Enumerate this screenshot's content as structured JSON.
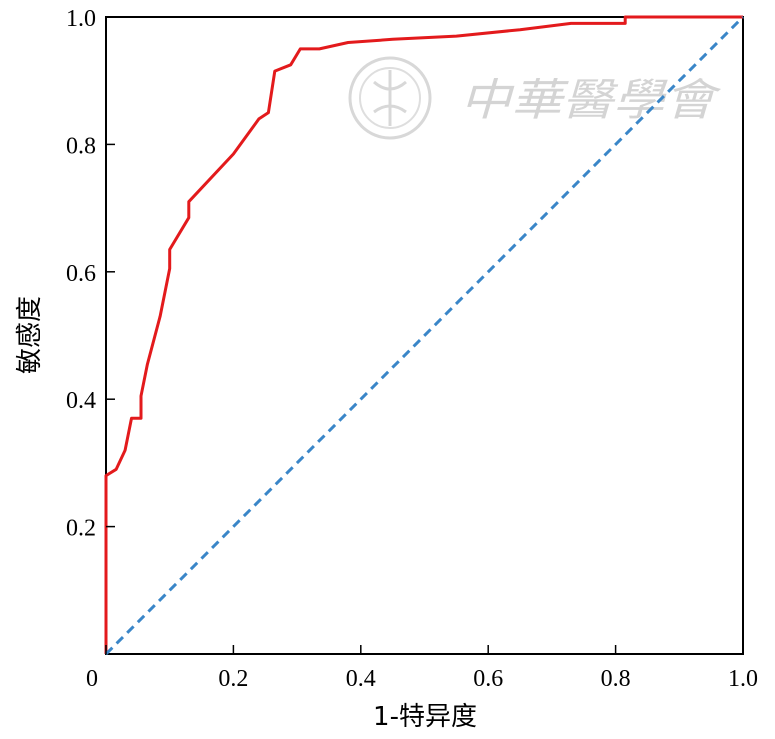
{
  "chart_data": {
    "type": "line",
    "xlabel": "1-特异度",
    "ylabel": "敏感度",
    "xlim": [
      0,
      1
    ],
    "ylim": [
      0,
      1
    ],
    "x_ticks": [
      "0",
      "0.2",
      "0.4",
      "0.6",
      "0.8",
      "1.0"
    ],
    "y_ticks": [
      "0.2",
      "0.4",
      "0.6",
      "0.8",
      "1.0"
    ],
    "grid": false,
    "series": [
      {
        "color": "#e31a1c",
        "style": "solid",
        "x": [
          0,
          0,
          0.016,
          0.03,
          0.03,
          0.04,
          0.04,
          0.055,
          0.055,
          0.065,
          0.085,
          0.1,
          0.1,
          0.13,
          0.13,
          0.2,
          0.24,
          0.255,
          0.265,
          0.29,
          0.305,
          0.335,
          0.38,
          0.45,
          0.55,
          0.65,
          0.73,
          0.815,
          0.815,
          1.0
        ],
        "y": [
          0,
          0.28,
          0.29,
          0.32,
          0.32,
          0.37,
          0.37,
          0.37,
          0.405,
          0.455,
          0.53,
          0.605,
          0.635,
          0.685,
          0.71,
          0.785,
          0.84,
          0.85,
          0.915,
          0.925,
          0.95,
          0.95,
          0.96,
          0.965,
          0.97,
          0.98,
          0.99,
          0.99,
          1.0,
          1.0
        ]
      },
      {
        "color": "#3a86c8",
        "style": "dashed",
        "x": [
          0,
          1
        ],
        "y": [
          0,
          1
        ]
      }
    ]
  },
  "watermark": {
    "text": "中華醫學會"
  }
}
